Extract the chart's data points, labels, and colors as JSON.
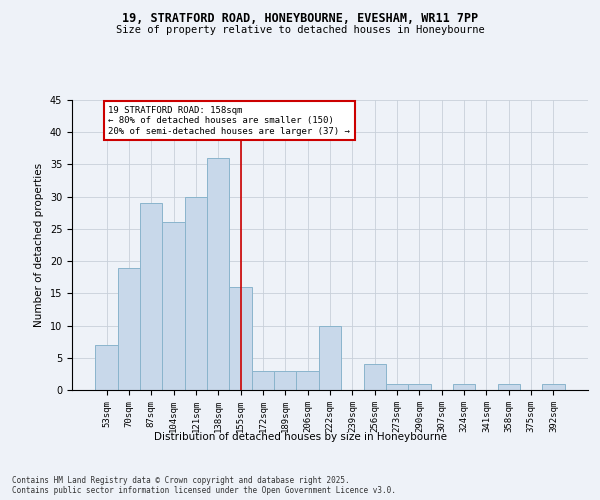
{
  "title_line1": "19, STRATFORD ROAD, HONEYBOURNE, EVESHAM, WR11 7PP",
  "title_line2": "Size of property relative to detached houses in Honeybourne",
  "xlabel": "Distribution of detached houses by size in Honeybourne",
  "ylabel": "Number of detached properties",
  "categories": [
    "53sqm",
    "70sqm",
    "87sqm",
    "104sqm",
    "121sqm",
    "138sqm",
    "155sqm",
    "172sqm",
    "189sqm",
    "206sqm",
    "222sqm",
    "239sqm",
    "256sqm",
    "273sqm",
    "290sqm",
    "307sqm",
    "324sqm",
    "341sqm",
    "358sqm",
    "375sqm",
    "392sqm"
  ],
  "values": [
    7,
    19,
    29,
    26,
    30,
    36,
    16,
    3,
    3,
    3,
    10,
    0,
    4,
    1,
    1,
    0,
    1,
    0,
    1,
    0,
    1
  ],
  "bar_color": "#c8d8ea",
  "bar_edgecolor": "#8ab4cc",
  "bar_width": 1.0,
  "ylim": [
    0,
    45
  ],
  "yticks": [
    0,
    5,
    10,
    15,
    20,
    25,
    30,
    35,
    40,
    45
  ],
  "vline_x": 6.0,
  "vline_color": "#cc0000",
  "annotation_text": "19 STRATFORD ROAD: 158sqm\n← 80% of detached houses are smaller (150)\n20% of semi-detached houses are larger (37) →",
  "annotation_box_color": "#cc0000",
  "bg_color": "#eef2f8",
  "fig_bg_color": "#eef2f8",
  "footer_line1": "Contains HM Land Registry data © Crown copyright and database right 2025.",
  "footer_line2": "Contains public sector information licensed under the Open Government Licence v3.0."
}
